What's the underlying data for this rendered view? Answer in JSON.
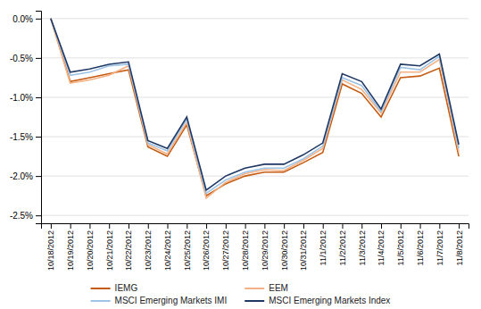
{
  "chart_data": {
    "type": "line",
    "categories": [
      "10/18/2012",
      "10/19/2012",
      "10/20/2012",
      "10/21/2012",
      "10/22/2012",
      "10/23/2012",
      "10/24/2012",
      "10/25/2012",
      "10/26/2012",
      "10/27/2012",
      "10/28/2012",
      "10/29/2012",
      "10/30/2012",
      "10/31/2012",
      "11/1/2012",
      "11/2/2012",
      "11/3/2012",
      "11/4/2012",
      "11/5/2012",
      "11/6/2012",
      "11/7/2012",
      "11/8/2012"
    ],
    "series": [
      {
        "name": "IEMG",
        "color": "#C55A11",
        "values": [
          0.0,
          -0.008,
          -0.0075,
          -0.007,
          -0.0065,
          -0.0163,
          -0.0175,
          -0.0135,
          -0.0225,
          -0.021,
          -0.02,
          -0.0195,
          -0.0195,
          -0.0183,
          -0.017,
          -0.0083,
          -0.0095,
          -0.0125,
          -0.0075,
          -0.0073,
          -0.0063,
          -0.0175
        ]
      },
      {
        "name": "EEM",
        "color": "#F4B183",
        "values": [
          0.0,
          -0.0082,
          -0.0078,
          -0.0072,
          -0.006,
          -0.016,
          -0.0172,
          -0.0132,
          -0.0228,
          -0.0208,
          -0.0197,
          -0.0192,
          -0.0193,
          -0.018,
          -0.0165,
          -0.0078,
          -0.009,
          -0.012,
          -0.0068,
          -0.0068,
          -0.0052,
          -0.017
        ]
      },
      {
        "name": "MSCI Emerging Markets IMI",
        "color": "#9DC3E6",
        "values": [
          0.0,
          -0.0072,
          -0.0068,
          -0.006,
          -0.0058,
          -0.0158,
          -0.0168,
          -0.0128,
          -0.0222,
          -0.0205,
          -0.0195,
          -0.019,
          -0.019,
          -0.0178,
          -0.0162,
          -0.0075,
          -0.0085,
          -0.0118,
          -0.0062,
          -0.0065,
          -0.0048,
          -0.0165
        ]
      },
      {
        "name": "MSCI Emerging Markets Index",
        "color": "#1F3864",
        "values": [
          0.0,
          -0.0068,
          -0.0064,
          -0.0058,
          -0.0055,
          -0.0155,
          -0.0165,
          -0.0125,
          -0.0218,
          -0.02,
          -0.019,
          -0.0185,
          -0.0185,
          -0.0173,
          -0.0158,
          -0.007,
          -0.008,
          -0.0115,
          -0.0058,
          -0.006,
          -0.0045,
          -0.016
        ]
      }
    ],
    "ylim": [
      -0.026,
      0.001
    ],
    "yticks": [
      {
        "value": 0.0,
        "label": "0.0%"
      },
      {
        "value": -0.005,
        "label": "-0.5%"
      },
      {
        "value": -0.01,
        "label": "-1.0%"
      },
      {
        "value": -0.015,
        "label": "-1.5%"
      },
      {
        "value": -0.02,
        "label": "-2.0%"
      },
      {
        "value": -0.025,
        "label": "-2.5%"
      }
    ],
    "grid": true,
    "legend": "bottom"
  }
}
